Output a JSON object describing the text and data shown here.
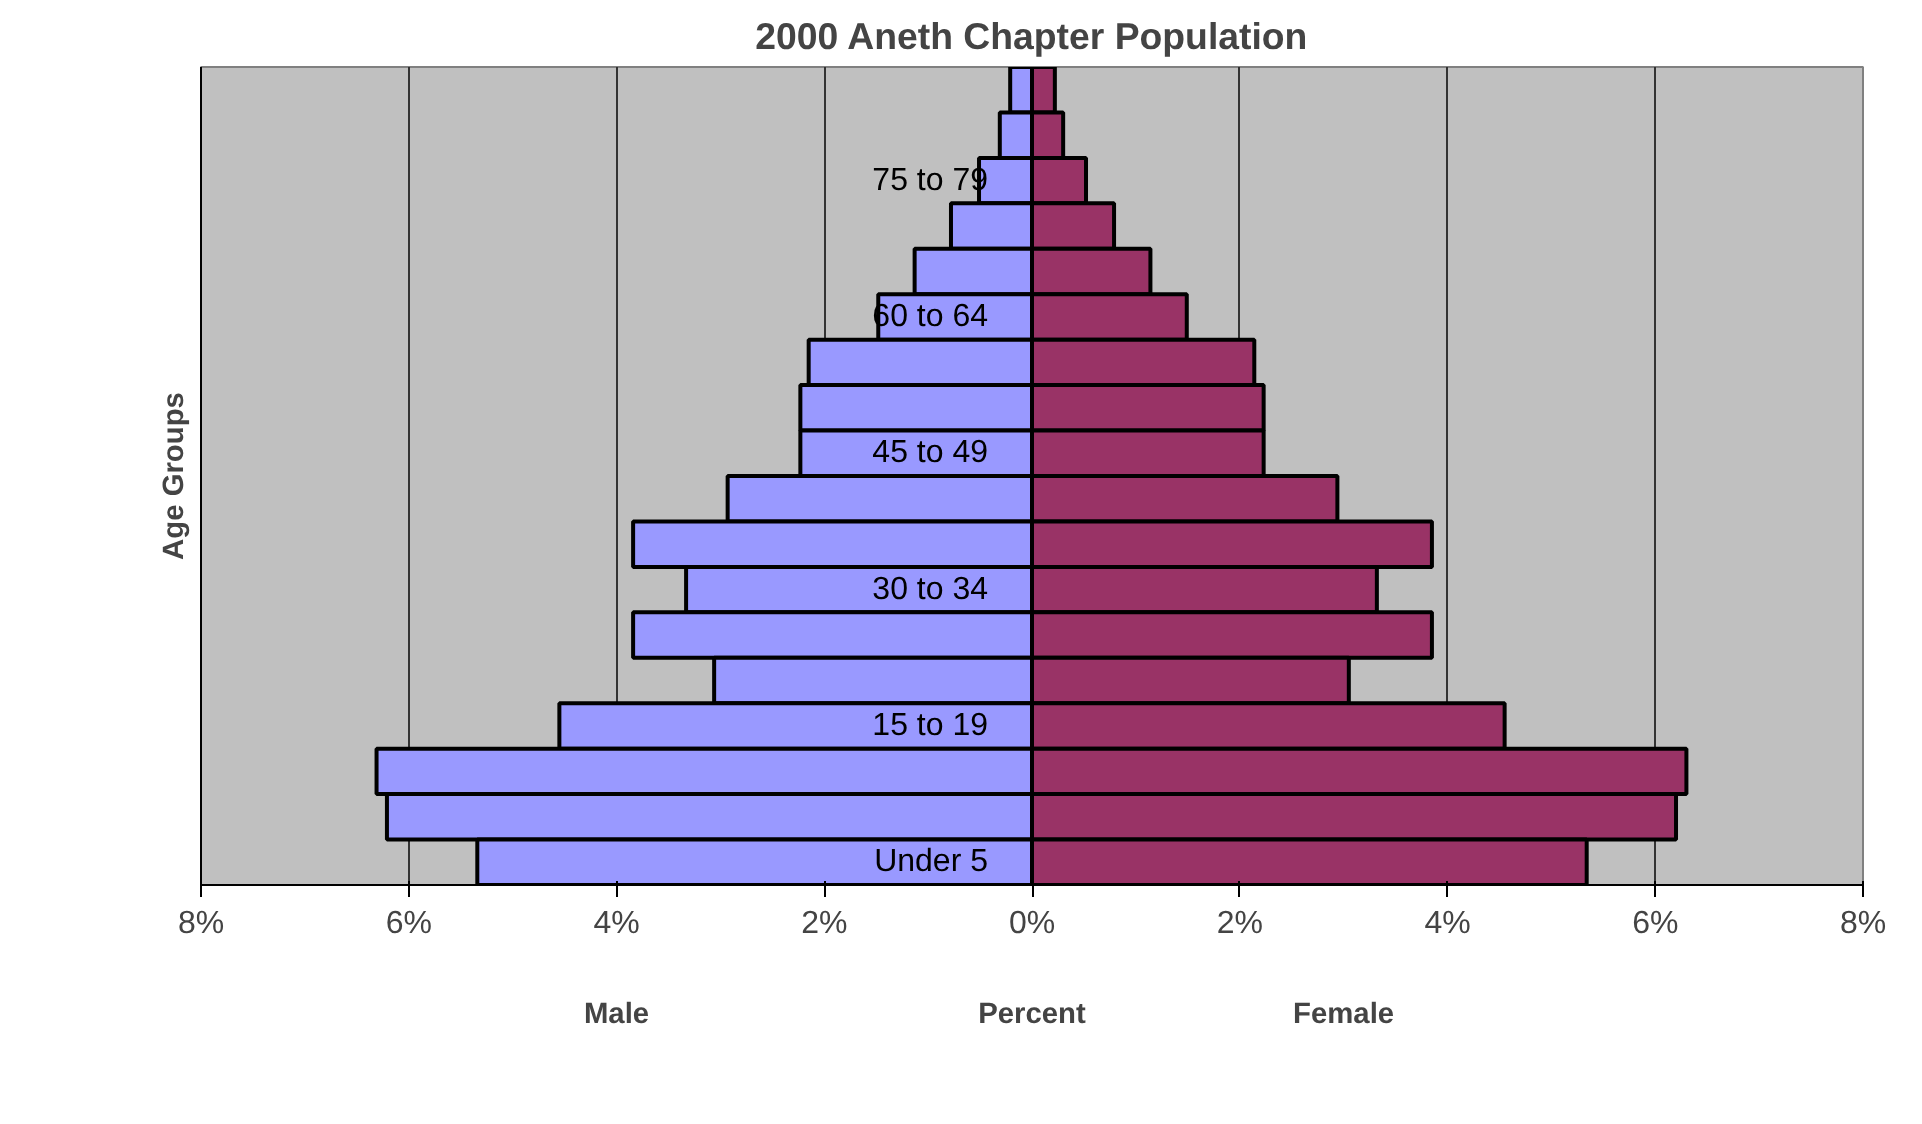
{
  "chart_data": {
    "type": "bar",
    "orientation": "horizontal",
    "stacked": true,
    "title": "2000 Aneth Chapter Population",
    "xlabel": "Percent",
    "ylabel": "Age Groups",
    "categories": [
      null,
      null,
      "75 to 79",
      null,
      null,
      "60 to 64",
      null,
      null,
      "45 to 49",
      null,
      null,
      "30 to 34",
      null,
      null,
      "15 to 19",
      null,
      null,
      "Under 5"
    ],
    "series": [
      {
        "color": "#9999ff",
        "values": [
          -0.21,
          -0.31,
          -0.51,
          -0.78,
          -1.13,
          -1.48,
          -2.15,
          -2.23,
          -2.23,
          -2.93,
          -3.84,
          -3.33,
          -3.84,
          -3.06,
          -4.55,
          -6.31,
          -6.21,
          -5.34
        ]
      },
      {
        "color": "#993366",
        "values": [
          0.22,
          0.3,
          0.52,
          0.79,
          1.14,
          1.49,
          2.14,
          2.23,
          2.23,
          2.94,
          3.85,
          3.32,
          3.85,
          3.05,
          4.55,
          6.3,
          6.2,
          5.34
        ]
      }
    ],
    "xlim": [
      -8,
      8
    ],
    "xticks": [
      {
        "value": -8,
        "label": "8%"
      },
      {
        "value": -6,
        "label": "6%"
      },
      {
        "value": -4,
        "label": "4%"
      },
      {
        "value": -2,
        "label": "2%"
      },
      {
        "value": 0,
        "label": "0%"
      },
      {
        "value": 2,
        "label": "2%"
      },
      {
        "value": 4,
        "label": "4%"
      },
      {
        "value": 6,
        "label": "6%"
      },
      {
        "value": 8,
        "label": "8%"
      }
    ],
    "annotations": [
      "Male",
      "Female"
    ],
    "grid": "x"
  }
}
